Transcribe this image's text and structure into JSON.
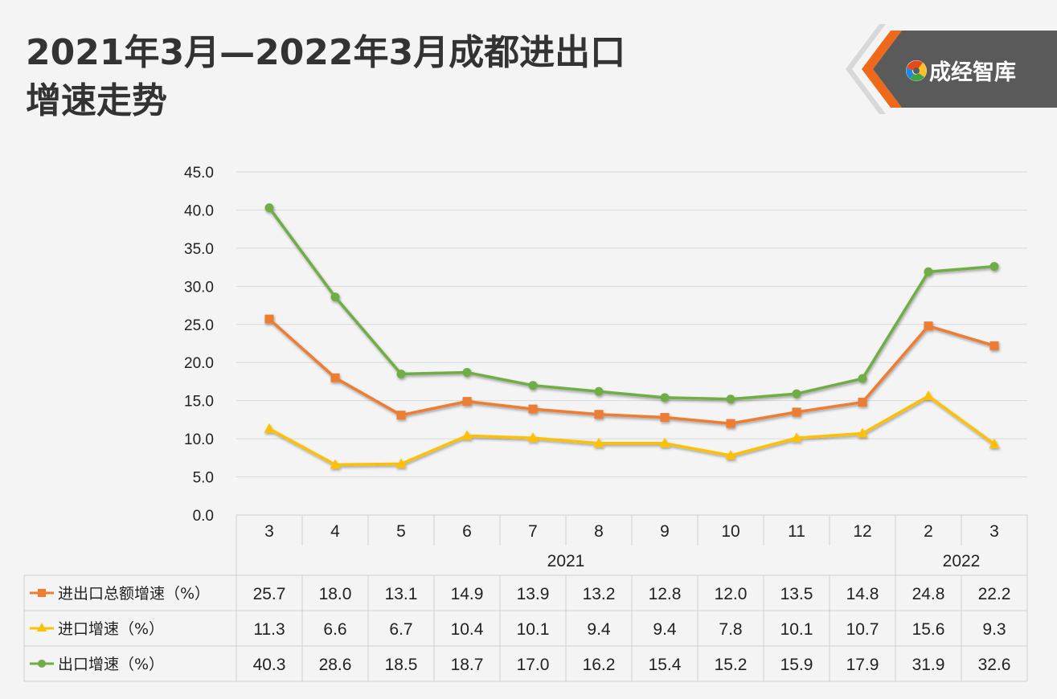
{
  "header": {
    "title_line1": "2021年3月—2022年3月成都进出口",
    "title_line2": "增速走势",
    "logo_text": "成经智库",
    "logo_icon": "swirl-logo-icon"
  },
  "colors": {
    "total": "#ed7d31",
    "import": "#ffc000",
    "export": "#70ad47",
    "grid": "#d9d9d9",
    "logo_bg": "#5a5a5a",
    "logo_accent": "#ee6a1a"
  },
  "chart_data": {
    "type": "line",
    "categories": [
      "3",
      "4",
      "5",
      "6",
      "7",
      "8",
      "9",
      "10",
      "11",
      "12",
      "2",
      "3"
    ],
    "year_groups": [
      {
        "label": "2021",
        "span": 10
      },
      {
        "label": "2022",
        "span": 2
      }
    ],
    "ylim": [
      0,
      45
    ],
    "ytick_step": 5,
    "ytick_labels": [
      "0.0",
      "5.0",
      "10.0",
      "15.0",
      "20.0",
      "25.0",
      "30.0",
      "35.0",
      "40.0",
      "45.0"
    ],
    "grid": true,
    "series": [
      {
        "name": "进出口总额增速（%）",
        "marker": "square",
        "color": "#ed7d31",
        "values": [
          25.7,
          18.0,
          13.1,
          14.9,
          13.9,
          13.2,
          12.8,
          12.0,
          13.5,
          14.8,
          24.8,
          22.2
        ],
        "labels": [
          "25.7",
          "18.0",
          "13.1",
          "14.9",
          "13.9",
          "13.2",
          "12.8",
          "12.0",
          "13.5",
          "14.8",
          "24.8",
          "22.2"
        ]
      },
      {
        "name": "进口增速（%）",
        "marker": "triangle",
        "color": "#ffc000",
        "values": [
          11.3,
          6.6,
          6.7,
          10.4,
          10.1,
          9.4,
          9.4,
          7.8,
          10.1,
          10.7,
          15.6,
          9.3
        ],
        "labels": [
          "11.3",
          "6.6",
          "6.7",
          "10.4",
          "10.1",
          "9.4",
          "9.4",
          "7.8",
          "10.1",
          "10.7",
          "15.6",
          "9.3"
        ]
      },
      {
        "name": "出口增速（%）",
        "marker": "circle",
        "color": "#70ad47",
        "values": [
          40.3,
          28.6,
          18.5,
          18.7,
          17.0,
          16.2,
          15.4,
          15.2,
          15.9,
          17.9,
          31.9,
          32.6
        ],
        "labels": [
          "40.3",
          "28.6",
          "18.5",
          "18.7",
          "17.0",
          "16.2",
          "15.4",
          "15.2",
          "15.9",
          "17.9",
          "31.9",
          "32.6"
        ]
      }
    ]
  }
}
